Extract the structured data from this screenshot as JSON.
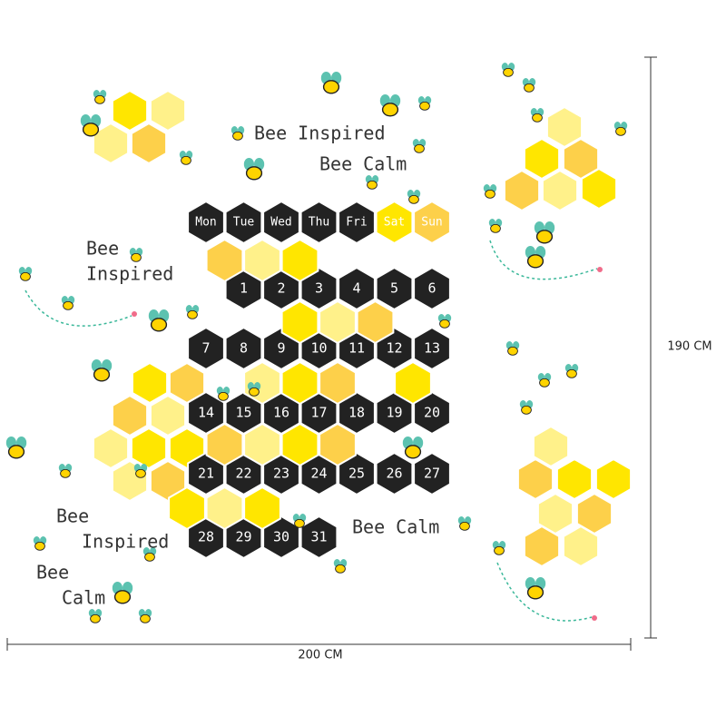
{
  "slogans": {
    "top": [
      "Bee Inspired",
      "Bee Calm"
    ],
    "left": [
      "Bee",
      "Inspired"
    ],
    "bottom_left": [
      "Bee",
      "Inspired",
      "Bee",
      "Calm"
    ],
    "bottom_middle": "Bee Calm"
  },
  "calendar": {
    "weekdays": [
      "Mon",
      "Tue",
      "Wed",
      "Thu",
      "Fri",
      "Sat",
      "Sun"
    ],
    "days": [
      1,
      2,
      3,
      4,
      5,
      6,
      7,
      8,
      9,
      10,
      11,
      12,
      13,
      14,
      15,
      16,
      17,
      18,
      19,
      20,
      21,
      22,
      23,
      24,
      25,
      26,
      27,
      28,
      29,
      30,
      31
    ]
  },
  "dimensions": {
    "height": "190 CM",
    "width": "200 CM"
  }
}
